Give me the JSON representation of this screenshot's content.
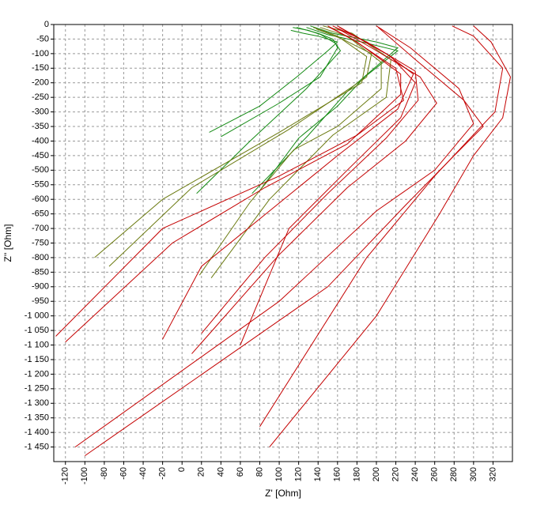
{
  "chart_data": {
    "type": "line",
    "xlabel": "Z' [Ohm]",
    "ylabel": "Z'' [Ohm]",
    "xlim": [
      -132,
      340
    ],
    "ylim": [
      -1500,
      0
    ],
    "grid": true,
    "x_ticks": [
      -120,
      -100,
      -80,
      -60,
      -40,
      -20,
      0,
      20,
      40,
      60,
      80,
      100,
      120,
      140,
      160,
      180,
      200,
      220,
      240,
      260,
      280,
      300,
      320
    ],
    "x_tick_labels": [
      "-120",
      "-100",
      "-80",
      "-60",
      "-40",
      "-20",
      "0",
      "20",
      "40",
      "60",
      "80",
      "100",
      "120",
      "140",
      "160",
      "180",
      "200",
      "220",
      "240",
      "260",
      "280",
      "300",
      "320"
    ],
    "y_ticks": [
      0,
      -50,
      -100,
      -150,
      -200,
      -250,
      -300,
      -350,
      -400,
      -450,
      -500,
      -550,
      -600,
      -650,
      -700,
      -750,
      -800,
      -850,
      -900,
      -950,
      -1000,
      -1050,
      -1100,
      -1150,
      -1200,
      -1250,
      -1300,
      -1350,
      -1400,
      -1450
    ],
    "y_tick_labels": [
      "0",
      "-50",
      "-100",
      "-150",
      "-200",
      "-250",
      "-300",
      "-350",
      "-400",
      "-450",
      "-500",
      "-550",
      "-600",
      "-650",
      "-700",
      "-750",
      "-800",
      "-850",
      "-900",
      "-950",
      "-1 000",
      "-1 050",
      "-1 100",
      "-1 150",
      "-1 200",
      "-1 250",
      "-1 300",
      "-1 350",
      "-1 400",
      "-1 450"
    ],
    "colors": {
      "green": "#138a13",
      "olive": "#6b7a10",
      "red": "#c40000",
      "grid": "#999999",
      "frame": "#000000"
    },
    "series": [
      {
        "color": "green",
        "points": [
          [
            112,
            -20
          ],
          [
            125,
            -30
          ],
          [
            140,
            -40
          ],
          [
            160,
            -60
          ],
          [
            150,
            -90
          ],
          [
            118,
            -180
          ],
          [
            80,
            -280
          ],
          [
            28,
            -370
          ]
        ]
      },
      {
        "color": "green",
        "points": [
          [
            114,
            -10
          ],
          [
            130,
            -20
          ],
          [
            143,
            -35
          ],
          [
            158,
            -65
          ],
          [
            160,
            -80
          ],
          [
            142,
            -180
          ],
          [
            100,
            -270
          ],
          [
            40,
            -385
          ]
        ]
      },
      {
        "color": "green",
        "points": [
          [
            118,
            -10
          ],
          [
            140,
            -30
          ],
          [
            155,
            -50
          ],
          [
            163,
            -90
          ],
          [
            128,
            -220
          ],
          [
            70,
            -400
          ],
          [
            15,
            -580
          ]
        ]
      },
      {
        "color": "green",
        "points": [
          [
            128,
            -10
          ],
          [
            150,
            -35
          ],
          [
            185,
            -60
          ],
          [
            222,
            -90
          ],
          [
            188,
            -180
          ],
          [
            160,
            -280
          ],
          [
            120,
            -390
          ],
          [
            80,
            -570
          ]
        ]
      },
      {
        "color": "green",
        "points": [
          [
            132,
            -5
          ],
          [
            155,
            -30
          ],
          [
            200,
            -60
          ],
          [
            222,
            -80
          ],
          [
            170,
            -230
          ],
          [
            130,
            -380
          ],
          [
            72,
            -580
          ]
        ]
      },
      {
        "color": "olive",
        "points": [
          [
            135,
            -10
          ],
          [
            160,
            -40
          ],
          [
            190,
            -110
          ],
          [
            185,
            -200
          ],
          [
            100,
            -370
          ],
          [
            -20,
            -600
          ],
          [
            -90,
            -800
          ]
        ]
      },
      {
        "color": "olive",
        "points": [
          [
            138,
            -15
          ],
          [
            165,
            -50
          ],
          [
            195,
            -100
          ],
          [
            190,
            -180
          ],
          [
            110,
            -360
          ],
          [
            10,
            -560
          ],
          [
            -75,
            -830
          ]
        ]
      },
      {
        "color": "olive",
        "points": [
          [
            142,
            -10
          ],
          [
            170,
            -40
          ],
          [
            205,
            -130
          ],
          [
            205,
            -220
          ],
          [
            160,
            -350
          ],
          [
            115,
            -430
          ],
          [
            70,
            -610
          ],
          [
            18,
            -860
          ]
        ]
      },
      {
        "color": "olive",
        "points": [
          [
            145,
            -5
          ],
          [
            175,
            -30
          ],
          [
            215,
            -120
          ],
          [
            210,
            -250
          ],
          [
            155,
            -380
          ],
          [
            90,
            -600
          ],
          [
            30,
            -870
          ]
        ]
      },
      {
        "color": "red",
        "points": [
          [
            150,
            -5
          ],
          [
            175,
            -50
          ],
          [
            220,
            -150
          ],
          [
            228,
            -260
          ],
          [
            180,
            -380
          ],
          [
            100,
            -520
          ],
          [
            -20,
            -700
          ],
          [
            -130,
            -1070
          ]
        ]
      },
      {
        "color": "red",
        "points": [
          [
            152,
            -10
          ],
          [
            180,
            -60
          ],
          [
            225,
            -170
          ],
          [
            225,
            -240
          ],
          [
            170,
            -410
          ],
          [
            85,
            -560
          ],
          [
            -10,
            -750
          ],
          [
            -120,
            -1090
          ]
        ]
      },
      {
        "color": "red",
        "points": [
          [
            155,
            -5
          ],
          [
            190,
            -60
          ],
          [
            240,
            -160
          ],
          [
            243,
            -260
          ],
          [
            210,
            -390
          ],
          [
            150,
            -580
          ],
          [
            85,
            -800
          ],
          [
            20,
            -1060
          ]
        ]
      },
      {
        "color": "red",
        "points": [
          [
            158,
            -10
          ],
          [
            195,
            -80
          ],
          [
            245,
            -180
          ],
          [
            262,
            -270
          ],
          [
            230,
            -400
          ],
          [
            170,
            -560
          ],
          [
            100,
            -790
          ],
          [
            10,
            -1130
          ]
        ]
      },
      {
        "color": "red",
        "points": [
          [
            160,
            -5
          ],
          [
            210,
            -100
          ],
          [
            238,
            -170
          ],
          [
            222,
            -290
          ],
          [
            160,
            -450
          ],
          [
            90,
            -640
          ],
          [
            20,
            -830
          ],
          [
            -20,
            -1080
          ]
        ]
      },
      {
        "color": "red",
        "points": [
          [
            162,
            -10
          ],
          [
            215,
            -110
          ],
          [
            240,
            -200
          ],
          [
            225,
            -320
          ],
          [
            170,
            -500
          ],
          [
            110,
            -700
          ],
          [
            60,
            -1100
          ]
        ]
      },
      {
        "color": "red",
        "points": [
          [
            200,
            -5
          ],
          [
            235,
            -80
          ],
          [
            285,
            -220
          ],
          [
            300,
            -340
          ],
          [
            260,
            -500
          ],
          [
            200,
            -640
          ],
          [
            100,
            -950
          ],
          [
            -110,
            -1450
          ]
        ]
      },
      {
        "color": "red",
        "points": [
          [
            202,
            -10
          ],
          [
            240,
            -120
          ],
          [
            290,
            -260
          ],
          [
            310,
            -350
          ],
          [
            280,
            -450
          ],
          [
            230,
            -620
          ],
          [
            150,
            -900
          ],
          [
            -100,
            -1480
          ]
        ]
      },
      {
        "color": "red",
        "points": [
          [
            278,
            -5
          ],
          [
            300,
            -40
          ],
          [
            330,
            -150
          ],
          [
            322,
            -300
          ],
          [
            305,
            -360
          ],
          [
            260,
            -520
          ],
          [
            190,
            -800
          ],
          [
            80,
            -1380
          ]
        ]
      },
      {
        "color": "red",
        "points": [
          [
            300,
            -5
          ],
          [
            318,
            -60
          ],
          [
            338,
            -180
          ],
          [
            330,
            -320
          ],
          [
            300,
            -450
          ],
          [
            265,
            -650
          ],
          [
            200,
            -1000
          ],
          [
            90,
            -1450
          ]
        ]
      }
    ]
  }
}
